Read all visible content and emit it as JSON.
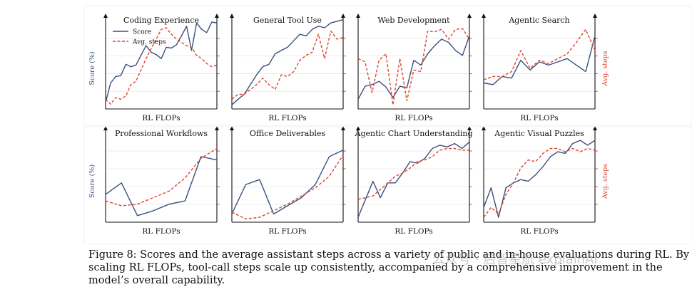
{
  "chart_data": [
    {
      "type": "line",
      "title": "Coding Experience",
      "xlabel": "RL FLOPs",
      "ylabel": "Score (%)",
      "y2label": "",
      "legend": [
        "Score",
        "Avg. steps"
      ],
      "legend_position": "top-left",
      "series": [
        {
          "name": "Score",
          "color": "#3b4f7d",
          "values": [
            0.08,
            0.32,
            0.4,
            0.41,
            0.55,
            0.52,
            0.54,
            0.66,
            0.78,
            0.7,
            0.67,
            0.62,
            0.76,
            0.75,
            0.79,
            0.9,
            1.02,
            0.72,
            1.06,
            0.98,
            0.94,
            1.07,
            1.06
          ]
        },
        {
          "name": "Avg. steps",
          "color": "#e0442f",
          "values": [
            0.12,
            0.06,
            0.14,
            0.12,
            0.16,
            0.3,
            0.34,
            0.48,
            0.62,
            0.74,
            0.86,
            0.98,
            1.0,
            0.92,
            0.86,
            0.82,
            0.78,
            0.76,
            0.66,
            0.62,
            0.56,
            0.52,
            0.54
          ]
        }
      ]
    },
    {
      "type": "line",
      "title": "General Tool Use",
      "xlabel": "RL FLOPs",
      "ylabel": "",
      "y2label": "",
      "series": [
        {
          "name": "",
          "color": "#3b4f7d",
          "values": [
            0.05,
            0.12,
            0.18,
            0.3,
            0.42,
            0.52,
            0.55,
            0.68,
            0.72,
            0.76,
            0.84,
            0.92,
            0.9,
            0.98,
            1.02,
            1.0,
            1.06,
            1.08,
            1.1
          ]
        },
        {
          "name": "",
          "color": "#e0442f",
          "values": [
            0.12,
            0.18,
            0.18,
            0.24,
            0.3,
            0.38,
            0.3,
            0.24,
            0.42,
            0.4,
            0.46,
            0.6,
            0.66,
            0.7,
            0.92,
            0.62,
            0.96,
            0.86,
            0.88
          ]
        }
      ]
    },
    {
      "type": "line",
      "title": "Web Development",
      "xlabel": "RL FLOPs",
      "ylabel": "",
      "y2label": "",
      "series": [
        {
          "name": "",
          "color": "#3b4f7d",
          "values": [
            0.12,
            0.28,
            0.3,
            0.34,
            0.27,
            0.14,
            0.28,
            0.26,
            0.6,
            0.54,
            0.68,
            0.78,
            0.86,
            0.82,
            0.72,
            0.66,
            0.9
          ]
        },
        {
          "name": "",
          "color": "#e0442f",
          "values": [
            0.62,
            0.58,
            0.2,
            0.6,
            0.68,
            0.05,
            0.62,
            0.1,
            0.48,
            0.46,
            0.96,
            0.95,
            0.98,
            0.86,
            0.98,
            0.99,
            0.86
          ]
        }
      ]
    },
    {
      "type": "line",
      "title": "Agentic Search",
      "xlabel": "RL FLOPs",
      "ylabel": "",
      "y2label": "Avg. steps",
      "series": [
        {
          "name": "",
          "color": "#3b4f7d",
          "values": [
            0.32,
            0.3,
            0.4,
            0.38,
            0.6,
            0.48,
            0.58,
            0.54,
            0.58,
            0.62,
            0.54,
            0.46,
            0.9
          ]
        },
        {
          "name": "",
          "color": "#e0442f",
          "values": [
            0.36,
            0.4,
            0.4,
            0.46,
            0.72,
            0.5,
            0.6,
            0.56,
            0.62,
            0.68,
            0.82,
            0.98,
            0.72
          ]
        }
      ]
    },
    {
      "type": "line",
      "title": "Professional Workflows",
      "xlabel": "RL FLOPs",
      "ylabel": "Score (%)",
      "y2label": "",
      "series": [
        {
          "name": "",
          "color": "#3b4f7d",
          "values": [
            0.34,
            0.48,
            0.08,
            0.14,
            0.22,
            0.26,
            0.8,
            0.76
          ]
        },
        {
          "name": "",
          "color": "#e0442f",
          "values": [
            0.26,
            0.2,
            0.22,
            0.3,
            0.38,
            0.54,
            0.78,
            0.9
          ]
        }
      ]
    },
    {
      "type": "line",
      "title": "Office Deliverables",
      "xlabel": "RL FLOPs",
      "ylabel": "",
      "y2label": "",
      "series": [
        {
          "name": "",
          "color": "#3b4f7d",
          "values": [
            0.1,
            0.46,
            0.52,
            0.1,
            0.2,
            0.3,
            0.46,
            0.8,
            0.88
          ]
        },
        {
          "name": "",
          "color": "#e0442f",
          "values": [
            0.12,
            0.04,
            0.06,
            0.14,
            0.22,
            0.32,
            0.42,
            0.56,
            0.82
          ]
        }
      ]
    },
    {
      "type": "line",
      "title": "Agentic Chart Understanding",
      "xlabel": "RL FLOPs",
      "ylabel": "",
      "y2label": "",
      "series": [
        {
          "name": "",
          "color": "#3b4f7d",
          "values": [
            0.06,
            0.28,
            0.5,
            0.3,
            0.48,
            0.48,
            0.6,
            0.74,
            0.72,
            0.78,
            0.9,
            0.94,
            0.92,
            0.96,
            0.9,
            0.98
          ]
        },
        {
          "name": "",
          "color": "#e0442f",
          "values": [
            0.28,
            0.3,
            0.32,
            0.4,
            0.48,
            0.56,
            0.6,
            0.66,
            0.74,
            0.76,
            0.8,
            0.88,
            0.9,
            0.9,
            0.88,
            0.88
          ]
        }
      ]
    },
    {
      "type": "line",
      "title": "Agentic Visual Puzzles",
      "xlabel": "RL FLOPs",
      "ylabel": "",
      "y2label": "Avg. steps",
      "series": [
        {
          "name": "",
          "color": "#3b4f7d",
          "values": [
            0.18,
            0.42,
            0.06,
            0.42,
            0.48,
            0.52,
            0.5,
            0.58,
            0.68,
            0.8,
            0.86,
            0.84,
            0.96,
            1.0,
            0.94,
            1.0
          ]
        },
        {
          "name": "",
          "color": "#e0442f",
          "values": [
            0.06,
            0.18,
            0.1,
            0.34,
            0.48,
            0.66,
            0.76,
            0.74,
            0.84,
            0.9,
            0.9,
            0.86,
            0.9,
            0.86,
            0.9,
            0.88
          ]
        }
      ]
    }
  ],
  "caption": "Figure 8: Scores and the average assistant steps across a variety of public and in-house evaluations during RL. By scaling RL FLOPs, tool-call steps scale up consistently, accompanied by a comprehensive improvement in the model’s overall capability.",
  "watermark": "公众号 · 启智星航 explainAI"
}
